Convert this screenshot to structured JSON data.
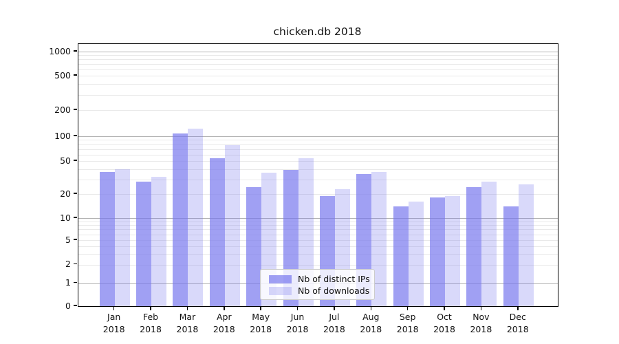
{
  "chart_data": {
    "type": "bar",
    "title": "chicken.db 2018",
    "x": {
      "months": [
        "Jan",
        "Feb",
        "Mar",
        "Apr",
        "May",
        "Jun",
        "Jul",
        "Aug",
        "Sep",
        "Oct",
        "Nov",
        "Dec"
      ],
      "year": "2018"
    },
    "series": [
      {
        "name": "Nb of distinct IPs",
        "color": "#7777ee",
        "alpha": 0.7,
        "values": [
          37,
          28,
          107,
          54,
          24,
          39,
          19,
          35,
          14,
          18,
          24,
          14
        ]
      },
      {
        "name": "Nb of downloads",
        "color": "#7777ee",
        "alpha": 0.28,
        "values": [
          40,
          32,
          122,
          78,
          36,
          54,
          23,
          37,
          16,
          19,
          28,
          26
        ]
      }
    ],
    "yscale": "symlog",
    "ylim": [
      0,
      1100
    ],
    "yticks": [
      0,
      1,
      2,
      5,
      10,
      20,
      50,
      100,
      200,
      500,
      1000
    ],
    "grid": {
      "major_color": "#b3b3b3",
      "minor_color": "#e9e9e9",
      "major_at": [
        1,
        10,
        100,
        1000
      ]
    },
    "legend": {
      "position": "lower-center"
    },
    "axis_color": "#000000",
    "text_color": "#111111"
  }
}
